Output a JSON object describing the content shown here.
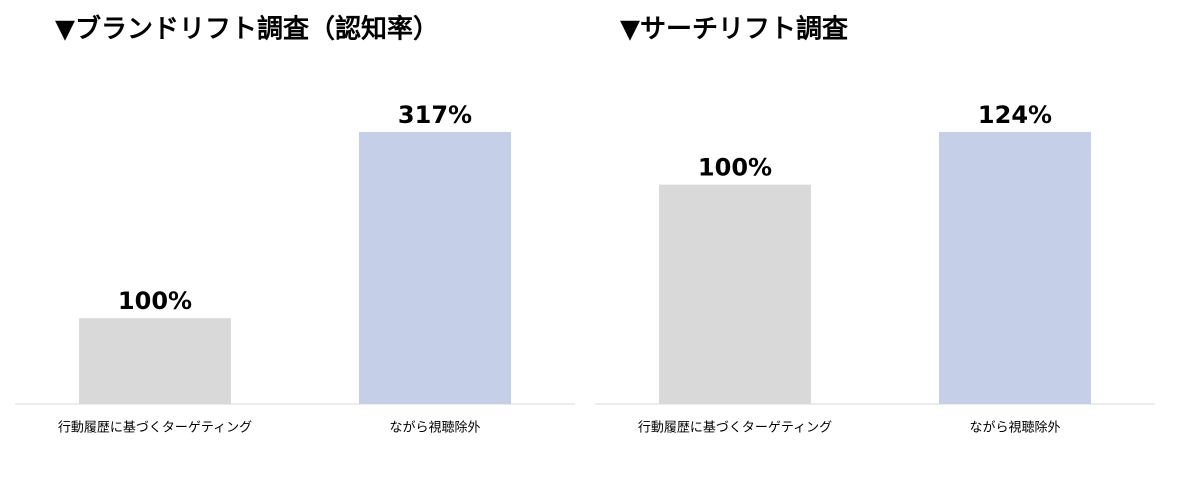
{
  "chart_data": [
    {
      "type": "bar",
      "title": "▼ブランドリフト調査（認知率）",
      "categories": [
        "行動履歴に基づくターゲティング",
        "ながら視聴除外"
      ],
      "values": [
        100,
        317
      ],
      "value_labels": [
        "100%",
        "317%"
      ],
      "colors": [
        "#d9d9d9",
        "#c5d0e8"
      ]
    },
    {
      "type": "bar",
      "title": "▼サーチリフト調査",
      "categories": [
        "行動履歴に基づくターゲティング",
        "ながら視聴除外"
      ],
      "values": [
        100,
        124
      ],
      "value_labels": [
        "100%",
        "124%"
      ],
      "colors": [
        "#d9d9d9",
        "#c5d0e8"
      ]
    }
  ]
}
